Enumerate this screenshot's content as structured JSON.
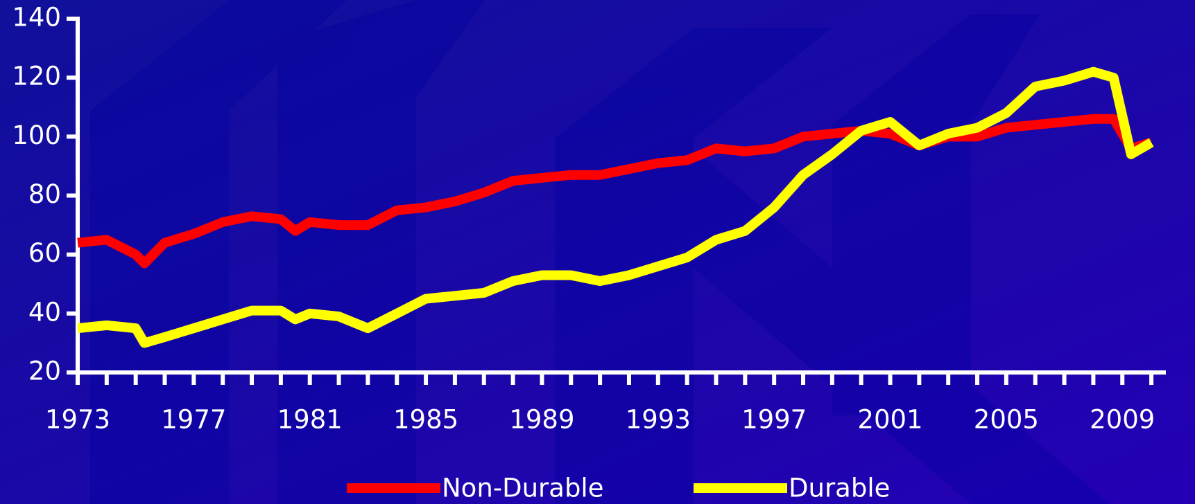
{
  "chart_data": {
    "type": "line",
    "x": [
      1973,
      1974,
      1975,
      1975.3,
      1976,
      1977,
      1978,
      1979,
      1980,
      1980.5,
      1981,
      1982,
      1983,
      1984,
      1985,
      1986,
      1987,
      1988,
      1989,
      1990,
      1991,
      1992,
      1993,
      1994,
      1995,
      1996,
      1997,
      1998,
      1999,
      2000,
      2001,
      2002,
      2003,
      2004,
      2005,
      2006,
      2007,
      2008,
      2008.7,
      2009.3,
      2010
    ],
    "series": [
      {
        "name": "Non-Durable",
        "color": "#ff0000",
        "values": [
          64,
          65,
          60,
          57,
          64,
          67,
          71,
          73,
          72,
          68,
          71,
          70,
          70,
          75,
          76,
          78,
          81,
          85,
          86,
          87,
          87,
          89,
          91,
          92,
          96,
          95,
          96,
          100,
          101,
          102,
          101,
          97,
          100,
          100,
          103,
          104,
          105,
          106,
          106,
          96,
          98
        ]
      },
      {
        "name": "Durable",
        "color": "#ffff00",
        "values": [
          35,
          36,
          35,
          30,
          32,
          35,
          38,
          41,
          41,
          38,
          40,
          39,
          35,
          40,
          45,
          46,
          47,
          51,
          53,
          53,
          51,
          53,
          56,
          59,
          65,
          68,
          76,
          87,
          94,
          102,
          105,
          97,
          101,
          103,
          108,
          117,
          119,
          122,
          120,
          94,
          98
        ]
      }
    ],
    "xlim": [
      1973,
      2010.5
    ],
    "xticks": [
      1973,
      1977,
      1981,
      1985,
      1989,
      1993,
      1997,
      2001,
      2005,
      2009
    ],
    "minor_xticks": [
      1974,
      1975,
      1976,
      1978,
      1979,
      1980,
      1982,
      1983,
      1984,
      1986,
      1987,
      1988,
      1990,
      1991,
      1992,
      1994,
      1995,
      1996,
      1998,
      1999,
      2000,
      2002,
      2003,
      2004,
      2006,
      2007,
      2008,
      2010
    ],
    "ylim": [
      20,
      140
    ],
    "yticks": [
      20,
      40,
      60,
      80,
      100,
      120,
      140
    ],
    "grid": false,
    "legend": "bottom"
  }
}
